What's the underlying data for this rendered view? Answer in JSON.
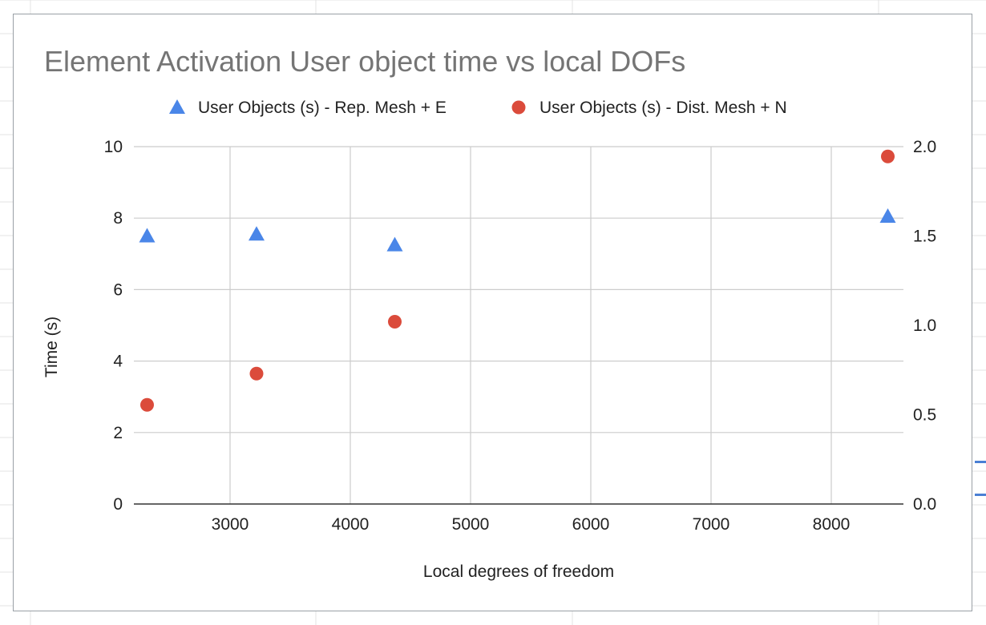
{
  "chart_data": {
    "type": "scatter",
    "title": "Element Activation User object time vs local DOFs",
    "xlabel": "Local degrees of freedom",
    "ylabel": "Time (s)",
    "y2label": "",
    "xlim": [
      2200,
      8600
    ],
    "ylim": [
      0,
      10
    ],
    "y2lim": [
      0,
      2.0
    ],
    "x_ticks": [
      3000,
      4000,
      5000,
      6000,
      7000,
      8000
    ],
    "y_ticks": [
      0,
      2,
      4,
      6,
      8,
      10
    ],
    "y2_ticks": [
      "0.0",
      "0.5",
      "1.0",
      "1.5",
      "2.0"
    ],
    "grid": true,
    "legend_position": "top",
    "series": [
      {
        "name": "User Objects (s) - Rep. Mesh + E",
        "marker": "triangle",
        "color": "#4a86e8",
        "axis": "left",
        "points": [
          {
            "x": 2310,
            "y": 7.5
          },
          {
            "x": 3220,
            "y": 7.55
          },
          {
            "x": 4370,
            "y": 7.25
          },
          {
            "x": 8470,
            "y": 8.05
          }
        ]
      },
      {
        "name": "User Objects (s) - Dist. Mesh + N",
        "marker": "circle",
        "color": "#db4b3b",
        "axis": "right",
        "points": [
          {
            "x": 2310,
            "y": 0.555
          },
          {
            "x": 3220,
            "y": 0.73
          },
          {
            "x": 4370,
            "y": 1.02
          },
          {
            "x": 8470,
            "y": 1.945
          }
        ]
      }
    ]
  }
}
